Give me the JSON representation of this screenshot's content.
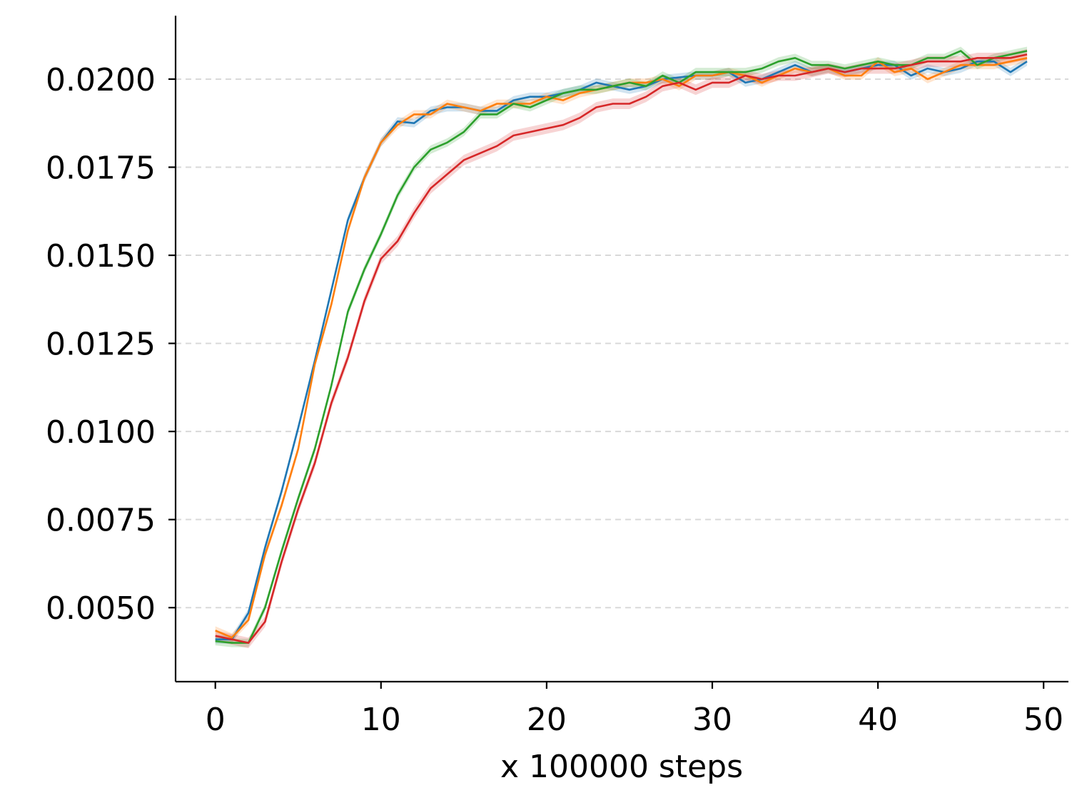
{
  "chart_data": {
    "type": "line",
    "title": "",
    "xlabel": "x 100000 steps",
    "ylabel": "",
    "xlim": [
      -2.4,
      51.5
    ],
    "ylim": [
      0.0029,
      0.0218
    ],
    "xticks": [
      0,
      10,
      20,
      30,
      40,
      50
    ],
    "xtick_labels": [
      "0",
      "10",
      "20",
      "30",
      "40",
      "50"
    ],
    "yticks": [
      0.005,
      0.0075,
      0.01,
      0.0125,
      0.015,
      0.0175,
      0.02
    ],
    "ytick_labels": [
      "0.0050",
      "0.0075",
      "0.0100",
      "0.0125",
      "0.0150",
      "0.0175",
      "0.0200"
    ],
    "grid": "y-dashed",
    "legend": "none",
    "x": [
      0,
      1,
      2,
      3,
      4,
      5,
      6,
      7,
      8,
      9,
      10,
      11,
      12,
      13,
      14,
      15,
      16,
      17,
      18,
      19,
      20,
      21,
      22,
      23,
      24,
      25,
      26,
      27,
      28,
      29,
      30,
      31,
      32,
      33,
      34,
      35,
      36,
      37,
      38,
      39,
      40,
      41,
      42,
      43,
      44,
      45,
      46,
      47,
      48,
      49
    ],
    "series": [
      {
        "color": "#1f77b4",
        "band": 0.00012,
        "values": [
          0.0041,
          0.0041,
          0.00485,
          0.0067,
          0.0083,
          0.0101,
          0.012,
          0.014,
          0.016,
          0.0172,
          0.0182,
          0.0188,
          0.01875,
          0.0191,
          0.0192,
          0.0192,
          0.0191,
          0.0191,
          0.0194,
          0.0195,
          0.0195,
          0.0196,
          0.0197,
          0.0199,
          0.0198,
          0.0197,
          0.0198,
          0.02,
          0.02005,
          0.0201,
          0.0201,
          0.0202,
          0.0199,
          0.02,
          0.0202,
          0.0204,
          0.0202,
          0.0203,
          0.0202,
          0.0203,
          0.0204,
          0.0204,
          0.0201,
          0.0203,
          0.0202,
          0.0203,
          0.0205,
          0.0205,
          0.0202,
          0.0205
        ]
      },
      {
        "color": "#ff7f0e",
        "band": 0.00012,
        "values": [
          0.00435,
          0.00415,
          0.00465,
          0.0065,
          0.0079,
          0.0095,
          0.0119,
          0.0136,
          0.0157,
          0.0172,
          0.0182,
          0.0187,
          0.019,
          0.019,
          0.0193,
          0.0192,
          0.0191,
          0.0193,
          0.0193,
          0.0193,
          0.0195,
          0.0194,
          0.0196,
          0.0197,
          0.0198,
          0.0199,
          0.0199,
          0.02,
          0.0198,
          0.0201,
          0.0201,
          0.0202,
          0.0201,
          0.0199,
          0.0201,
          0.0203,
          0.0202,
          0.0203,
          0.0201,
          0.0201,
          0.0205,
          0.0202,
          0.0203,
          0.02,
          0.0202,
          0.0204,
          0.0204,
          0.0204,
          0.0205,
          0.0206
        ]
      },
      {
        "color": "#2ca02c",
        "band": 0.00012,
        "values": [
          0.00405,
          0.004,
          0.004,
          0.005,
          0.0066,
          0.0081,
          0.0095,
          0.0113,
          0.0134,
          0.0146,
          0.0156,
          0.0167,
          0.0175,
          0.018,
          0.0182,
          0.0185,
          0.019,
          0.019,
          0.0193,
          0.0192,
          0.0194,
          0.0196,
          0.0197,
          0.0197,
          0.0198,
          0.0199,
          0.0198,
          0.0201,
          0.0199,
          0.0202,
          0.0202,
          0.0202,
          0.0202,
          0.0203,
          0.0205,
          0.0206,
          0.0204,
          0.0204,
          0.0203,
          0.0204,
          0.0205,
          0.0204,
          0.0204,
          0.0206,
          0.0206,
          0.0208,
          0.0204,
          0.0206,
          0.0207,
          0.0208
        ]
      },
      {
        "color": "#d62728",
        "band": 0.00015,
        "values": [
          0.0042,
          0.0041,
          0.004,
          0.0046,
          0.0063,
          0.0078,
          0.0091,
          0.0108,
          0.0121,
          0.0137,
          0.0149,
          0.0154,
          0.0162,
          0.0169,
          0.0173,
          0.0177,
          0.0179,
          0.0181,
          0.0184,
          0.0185,
          0.0186,
          0.0187,
          0.0189,
          0.0192,
          0.0193,
          0.0193,
          0.0195,
          0.0198,
          0.0199,
          0.0197,
          0.0199,
          0.0199,
          0.0201,
          0.02,
          0.0201,
          0.0201,
          0.0202,
          0.0203,
          0.0202,
          0.0203,
          0.0203,
          0.0203,
          0.0204,
          0.0205,
          0.0205,
          0.0205,
          0.0206,
          0.0206,
          0.0206,
          0.0207
        ]
      }
    ]
  }
}
